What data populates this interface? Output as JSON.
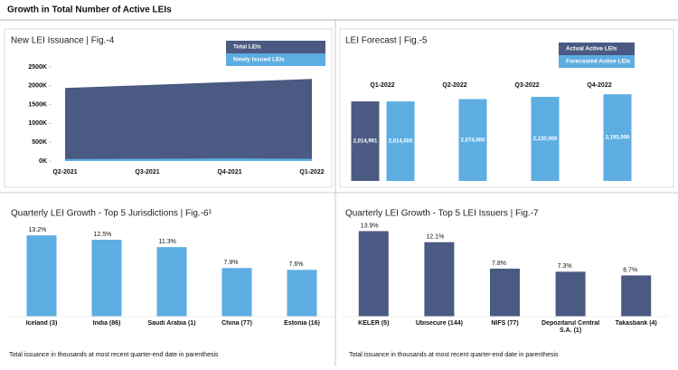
{
  "header": {
    "title": "Growth in Total Number of Active LEIs"
  },
  "chart_data": [
    {
      "type": "area",
      "title": "New LEI Issuance | Fig.-4",
      "categories": [
        "Q2-2021",
        "Q3-2021",
        "Q4-2021",
        "Q1-2022"
      ],
      "series": [
        {
          "name": "Total LEIs",
          "color": "#4b5a82",
          "values": [
            1940,
            2020,
            2100,
            2180
          ]
        },
        {
          "name": "Newly Issued LEIs",
          "color": "#5dade2",
          "values": [
            50,
            60,
            70,
            60
          ]
        }
      ],
      "ylim": [
        0,
        2500
      ],
      "yticks": [
        {
          "value": 0,
          "label": "0K"
        },
        {
          "value": 500,
          "label": "500K"
        },
        {
          "value": 1000,
          "label": "1000K"
        },
        {
          "value": 1500,
          "label": "1500K"
        },
        {
          "value": 2000,
          "label": "2000K"
        },
        {
          "value": 2500,
          "label": "2500K"
        }
      ]
    },
    {
      "type": "bar",
      "title": "LEI Forecast | Fig.-5",
      "categories": [
        "Q1-2022",
        "Q2-2022",
        "Q3-2022",
        "Q4-2022"
      ],
      "series": [
        {
          "name": "Actual Active LEIs",
          "color": "#4b5a82",
          "values": [
            2014991,
            null,
            null,
            null
          ],
          "value_labels": [
            "2,014,991",
            null,
            null,
            null
          ]
        },
        {
          "name": "Forecasted Active LEIs",
          "color": "#5dade2",
          "values": [
            2014000,
            2074000,
            2130000,
            2195000
          ],
          "value_labels": [
            "2,014,000",
            "2,074,000",
            "2,130,000",
            "2,195,000"
          ]
        }
      ],
      "ylim": [
        0,
        2200000
      ]
    },
    {
      "type": "bar",
      "title": "Quarterly LEI Growth - Top 5 Jurisdictions | Fig.-6¹",
      "categories": [
        "Iceland (3)",
        "India (86)",
        "Saudi Arabia (1)",
        "China (77)",
        "Estonia (16)"
      ],
      "values": [
        13.2,
        12.5,
        11.3,
        7.9,
        7.6
      ],
      "value_labels": [
        "13.2%",
        "12.5%",
        "11.3%",
        "7.9%",
        "7.6%"
      ],
      "color": "#5dade2",
      "ylim": [
        0,
        15
      ],
      "note": "Total issuance in thousands at most recent quarter-end date in parenthesis"
    },
    {
      "type": "bar",
      "title": "Quarterly LEI Growth - Top 5 LEI Issuers | Fig.-7",
      "categories": [
        "KELER (5)",
        "Ubisecure (144)",
        "NIFS (77)",
        "Depozitarul Central S.A. (1)",
        "Takasbank (4)"
      ],
      "values": [
        13.9,
        12.1,
        7.8,
        7.3,
        6.7
      ],
      "value_labels": [
        "13.9%",
        "12.1%",
        "7.8%",
        "7.3%",
        "6.7%"
      ],
      "color": "#4b5a82",
      "ylim": [
        0,
        15
      ],
      "note": "Total issuance in thousands at most recent quarter-end date in parenthesis"
    }
  ]
}
